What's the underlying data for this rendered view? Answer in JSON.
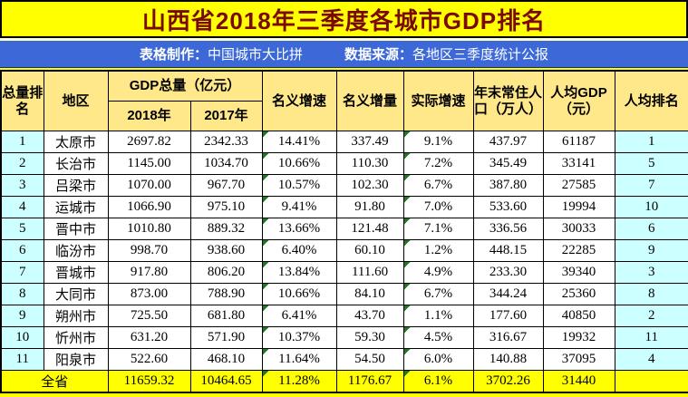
{
  "title": "山西省2018年三季度各城市GDP排名",
  "credit_bar": {
    "maker_label": "表格制作：",
    "maker_value": "中国城市大比拼",
    "source_label": "数据来源：",
    "source_value": "各地区三季度统计公报"
  },
  "headers": {
    "total_rank": "总量排名",
    "region": "地区",
    "gdp_group": "GDP总量（亿元）",
    "year_2018": "2018年",
    "year_2017": "2017年",
    "nominal_growth": "名义增速",
    "nominal_increment": "名义增量",
    "real_growth": "实际增速",
    "population": "年末常住人口（万人）",
    "gdp_per_capita": "人均GDP（元）",
    "per_capita_rank": "人均排名"
  },
  "chart_data": {
    "type": "table",
    "title": "山西省2018年三季度各城市GDP排名",
    "column_keys": [
      "total_rank",
      "region",
      "gdp_2018",
      "gdp_2017",
      "nominal_growth",
      "nominal_increment",
      "real_growth",
      "population",
      "gdp_per_capita",
      "per_capita_rank"
    ],
    "columns": [
      "总量排名",
      "地区",
      "GDP总量（亿元）2018年",
      "GDP总量（亿元）2017年",
      "名义增速",
      "名义增量",
      "实际增速",
      "年末常住人口（万人）",
      "人均GDP（元）",
      "人均排名"
    ],
    "rows": [
      [
        "1",
        "太原市",
        "2697.82",
        "2342.33",
        "14.41%",
        "337.49",
        "9.1%",
        "437.97",
        "61187",
        "1"
      ],
      [
        "2",
        "长治市",
        "1145.00",
        "1034.70",
        "10.66%",
        "110.30",
        "7.2%",
        "345.49",
        "33141",
        "5"
      ],
      [
        "3",
        "吕梁市",
        "1070.00",
        "967.70",
        "10.57%",
        "102.30",
        "6.7%",
        "387.80",
        "27585",
        "7"
      ],
      [
        "4",
        "运城市",
        "1066.90",
        "975.10",
        "9.41%",
        "91.80",
        "7.0%",
        "533.60",
        "19994",
        "10"
      ],
      [
        "5",
        "晋中市",
        "1010.80",
        "889.32",
        "13.66%",
        "121.48",
        "7.1%",
        "336.56",
        "30033",
        "6"
      ],
      [
        "6",
        "临汾市",
        "998.70",
        "938.60",
        "6.40%",
        "60.10",
        "1.2%",
        "448.15",
        "22285",
        "9"
      ],
      [
        "7",
        "晋城市",
        "917.80",
        "806.20",
        "13.84%",
        "111.60",
        "4.9%",
        "233.30",
        "39340",
        "3"
      ],
      [
        "8",
        "大同市",
        "873.00",
        "788.90",
        "10.66%",
        "84.10",
        "6.7%",
        "344.24",
        "25360",
        "8"
      ],
      [
        "9",
        "朔州市",
        "725.50",
        "681.80",
        "6.41%",
        "43.70",
        "1.1%",
        "177.60",
        "40850",
        "2"
      ],
      [
        "10",
        "忻州市",
        "631.20",
        "571.90",
        "10.37%",
        "59.30",
        "4.5%",
        "316.67",
        "19932",
        "11"
      ],
      [
        "11",
        "阳泉市",
        "522.60",
        "468.10",
        "11.64%",
        "54.50",
        "6.0%",
        "140.88",
        "37095",
        "4"
      ]
    ],
    "total_row": [
      "全省",
      "11659.32",
      "10464.65",
      "11.28%",
      "1176.67",
      "6.1%",
      "3702.26",
      "31440",
      ""
    ]
  },
  "colors": {
    "title_bg": "#FFFF00",
    "title_text": "#7A0A00",
    "credit_bg": "#3C69D7",
    "header_bg": "#FFE88A",
    "rank_col_bg": "#CCFFFF",
    "total_row_bg": "#FFFF00",
    "error_triangle": "#1F7A1F"
  }
}
